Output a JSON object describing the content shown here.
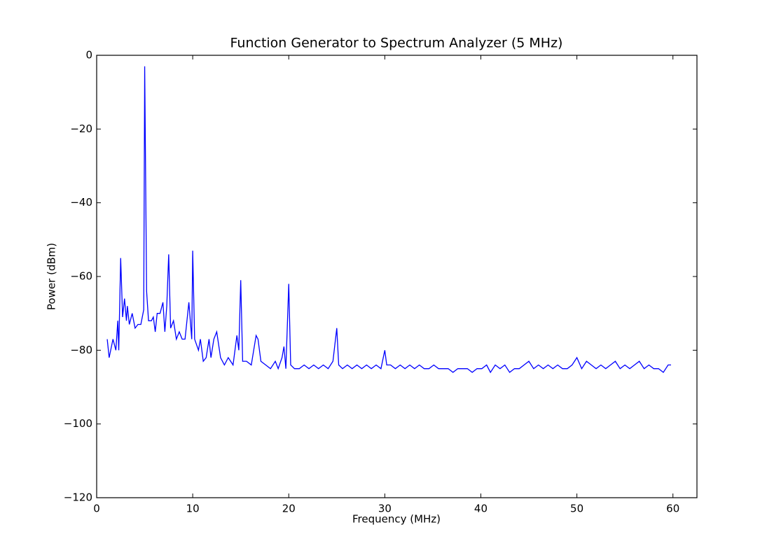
{
  "chart_data": {
    "type": "line",
    "title": "Function Generator to Spectrum Analyzer (5 MHz)",
    "xlabel": "Frequency (MHz)",
    "ylabel": "Power (dBm)",
    "xlim": [
      0,
      62.5
    ],
    "ylim": [
      -120,
      0
    ],
    "xticks": [
      0,
      10,
      20,
      30,
      40,
      50,
      60
    ],
    "yticks": [
      {
        "value": -120,
        "label": "−120"
      },
      {
        "value": -100,
        "label": "−100"
      },
      {
        "value": -80,
        "label": "−80"
      },
      {
        "value": -60,
        "label": "−60"
      },
      {
        "value": -40,
        "label": "−40"
      },
      {
        "value": -20,
        "label": "−20"
      },
      0
    ],
    "grid": false,
    "series": [
      {
        "color": "#0000ff",
        "x": [
          1.1,
          1.3,
          1.7,
          2.0,
          2.2,
          2.3,
          2.5,
          2.7,
          2.9,
          3.1,
          3.2,
          3.4,
          3.7,
          4.0,
          4.3,
          4.6,
          4.9,
          5.0,
          5.2,
          5.4,
          5.7,
          5.9,
          6.1,
          6.3,
          6.6,
          6.9,
          7.1,
          7.3,
          7.5,
          7.7,
          8.0,
          8.3,
          8.6,
          8.9,
          9.2,
          9.6,
          9.9,
          10.0,
          10.2,
          10.6,
          10.8,
          11.1,
          11.4,
          11.7,
          11.9,
          12.2,
          12.5,
          12.9,
          13.3,
          13.7,
          14.2,
          14.6,
          14.8,
          15.0,
          15.2,
          15.6,
          16.1,
          16.6,
          16.8,
          17.1,
          17.6,
          18.1,
          18.6,
          18.9,
          19.3,
          19.5,
          19.7,
          20.0,
          20.2,
          20.6,
          21.1,
          21.6,
          22.1,
          22.6,
          23.1,
          23.6,
          24.1,
          24.6,
          25.0,
          25.2,
          25.6,
          26.1,
          26.6,
          27.1,
          27.6,
          28.1,
          28.6,
          29.1,
          29.6,
          30.0,
          30.2,
          30.6,
          31.1,
          31.6,
          32.1,
          32.6,
          33.1,
          33.6,
          34.1,
          34.6,
          35.1,
          35.6,
          36.1,
          36.6,
          37.1,
          37.6,
          38.1,
          38.6,
          39.1,
          39.6,
          40.1,
          40.6,
          41.0,
          41.5,
          42.0,
          42.5,
          43.0,
          43.5,
          44.0,
          44.5,
          45.0,
          45.5,
          46.0,
          46.5,
          47.0,
          47.5,
          48.0,
          48.5,
          49.0,
          49.5,
          50.0,
          50.5,
          51.0,
          51.5,
          52.0,
          52.5,
          53.0,
          53.5,
          54.0,
          54.5,
          55.0,
          55.5,
          56.0,
          56.5,
          57.0,
          57.5,
          58.0,
          58.5,
          59.0,
          59.5,
          59.8
        ],
        "values": [
          -77,
          -82,
          -77,
          -80,
          -72,
          -80,
          -55,
          -71,
          -66,
          -72,
          -68,
          -73,
          -70,
          -74,
          -73,
          -73,
          -69,
          -3,
          -64,
          -72,
          -72,
          -71,
          -75,
          -70,
          -70,
          -67,
          -75,
          -68,
          -54,
          -74,
          -72,
          -77,
          -75,
          -77,
          -77,
          -67,
          -77,
          -53,
          -77,
          -80,
          -77,
          -83,
          -82,
          -77,
          -82,
          -77,
          -75,
          -82,
          -84,
          -82,
          -84,
          -76,
          -80,
          -61,
          -83,
          -83,
          -84,
          -76,
          -77,
          -83,
          -84,
          -85,
          -83,
          -85,
          -82,
          -79,
          -85,
          -62,
          -84,
          -85,
          -85,
          -84,
          -85,
          -84,
          -85,
          -84,
          -85,
          -83,
          -74,
          -84,
          -85,
          -84,
          -85,
          -84,
          -85,
          -84,
          -85,
          -84,
          -85,
          -80,
          -84,
          -84,
          -85,
          -84,
          -85,
          -84,
          -85,
          -84,
          -85,
          -85,
          -84,
          -85,
          -85,
          -85,
          -86,
          -85,
          -85,
          -85,
          -86,
          -85,
          -85,
          -84,
          -86,
          -84,
          -85,
          -84,
          -86,
          -85,
          -85,
          -84,
          -83,
          -85,
          -84,
          -85,
          -84,
          -85,
          -84,
          -85,
          -85,
          -84,
          -82,
          -85,
          -83,
          -84,
          -85,
          -84,
          -85,
          -84,
          -83,
          -85,
          -84,
          -85,
          -84,
          -83,
          -85,
          -84,
          -85,
          -85,
          -86,
          -84,
          -84
        ]
      }
    ]
  }
}
